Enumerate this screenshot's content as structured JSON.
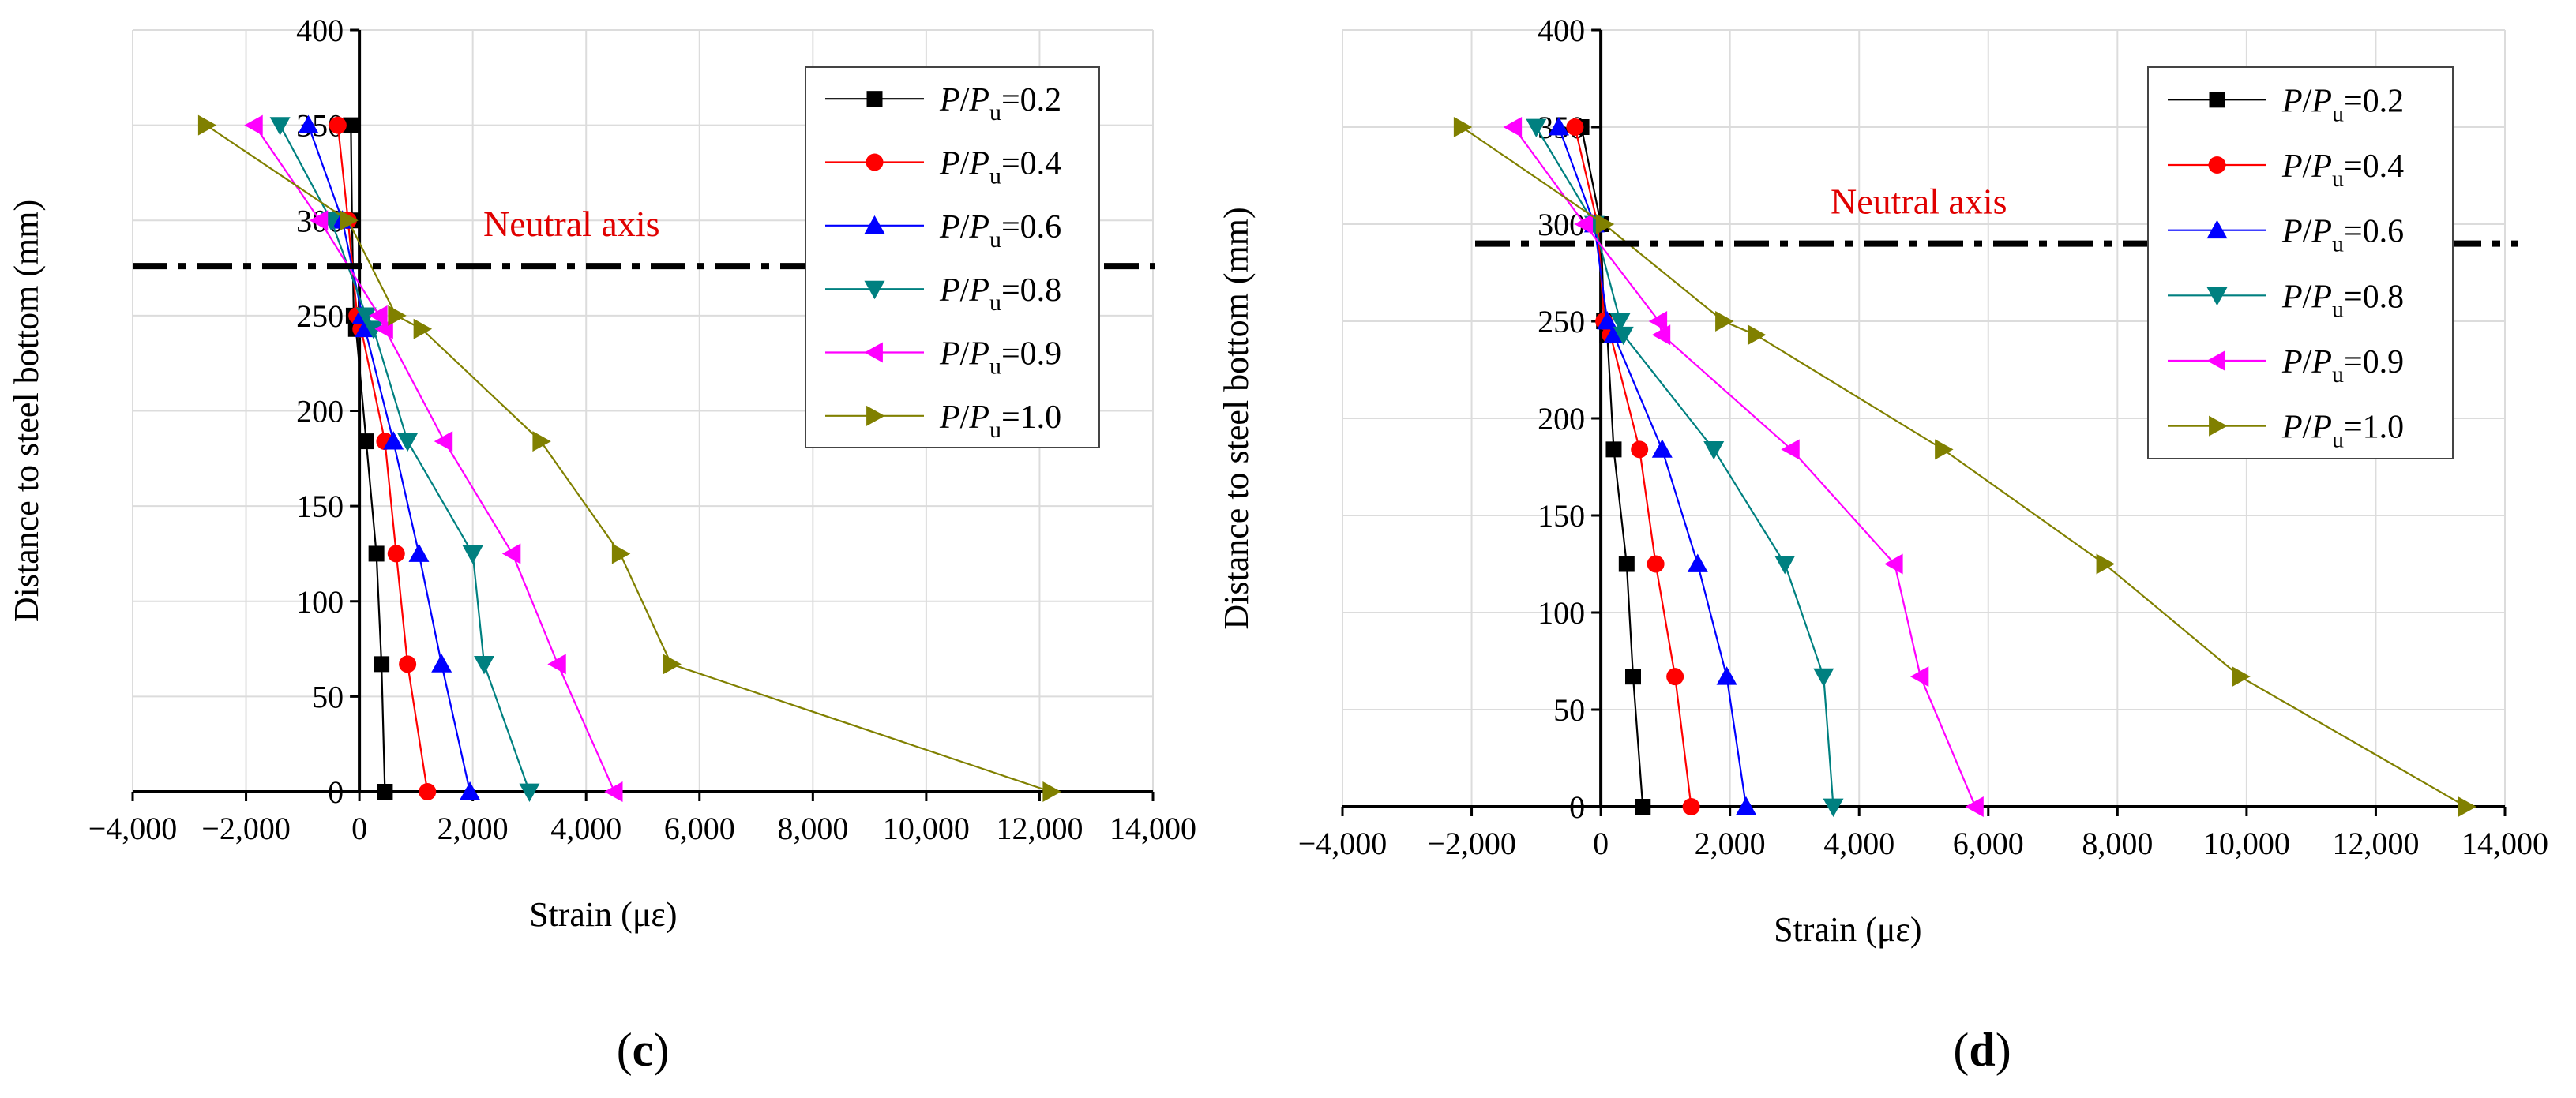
{
  "colors": {
    "black": "#000000",
    "red": "#ff0000",
    "blue": "#0000ff",
    "teal": "#008080",
    "magenta": "#ff00ff",
    "olive": "#808000",
    "neutral_label": "#e00000"
  },
  "legend_labels": [
    "P/Pu=0.2",
    "P/Pu=0.4",
    "P/Pu=0.6",
    "P/Pu=0.8",
    "P/Pu=0.9",
    "P/Pu=1.0"
  ],
  "chart_data": [
    {
      "type": "line",
      "panel_label": "c",
      "title": "",
      "xlabel": "Strain (με)",
      "ylabel": "Distance to steel bottom (mm)",
      "xlim": [
        -4000,
        14000
      ],
      "ylim": [
        0,
        400
      ],
      "xticks": [
        -4000,
        -2000,
        0,
        2000,
        4000,
        6000,
        8000,
        10000,
        12000,
        14000
      ],
      "xtick_labels": [
        "−4,000",
        "−2,000",
        "0",
        "2,000",
        "4,000",
        "6,000",
        "8,000",
        "10,000",
        "12,000",
        "14,000"
      ],
      "yticks": [
        0,
        50,
        100,
        150,
        200,
        250,
        300,
        350,
        400
      ],
      "ytick_labels": [
        "0",
        "50",
        "100",
        "150",
        "200",
        "250",
        "300",
        "350",
        "400"
      ],
      "grid": true,
      "legend_position": "top-right",
      "annotation": "Neutral axis",
      "neutral_axis_y": 276,
      "series": [
        {
          "name": "P/Pu=0.2",
          "marker": "square",
          "color": "#000000",
          "x": [
            450,
            390,
            300,
            120,
            -60,
            -100,
            -130,
            -150
          ],
          "y": [
            0,
            67,
            125,
            184,
            243,
            250,
            300,
            350
          ]
        },
        {
          "name": "P/Pu=0.4",
          "marker": "circle",
          "color": "#ff0000",
          "x": [
            1200,
            850,
            650,
            450,
            30,
            -40,
            -200,
            -380
          ],
          "y": [
            0,
            67,
            125,
            184,
            243,
            250,
            300,
            350
          ]
        },
        {
          "name": "P/Pu=0.6",
          "marker": "triangle-up",
          "color": "#0000ff",
          "x": [
            1950,
            1450,
            1050,
            600,
            100,
            50,
            -300,
            -900
          ],
          "y": [
            0,
            67,
            125,
            184,
            243,
            250,
            300,
            350
          ]
        },
        {
          "name": "P/Pu=0.8",
          "marker": "triangle-down",
          "color": "#008080",
          "x": [
            3000,
            2200,
            2000,
            850,
            250,
            120,
            -500,
            -1400
          ],
          "y": [
            0,
            67,
            125,
            184,
            243,
            250,
            300,
            350
          ]
        },
        {
          "name": "P/Pu=0.9",
          "marker": "triangle-left",
          "color": "#ff00ff",
          "x": [
            4500,
            3500,
            2700,
            1500,
            450,
            350,
            -700,
            -1850
          ],
          "y": [
            0,
            67,
            125,
            184,
            243,
            250,
            300,
            350
          ]
        },
        {
          "name": "P/Pu=1.0",
          "marker": "triangle-right",
          "color": "#808000",
          "x": [
            12200,
            5500,
            4600,
            3200,
            1100,
            650,
            -200,
            -2700
          ],
          "y": [
            0,
            67,
            125,
            184,
            243,
            250,
            300,
            350
          ]
        }
      ]
    },
    {
      "type": "line",
      "panel_label": "d",
      "title": "",
      "xlabel": "Strain (με)",
      "ylabel": "Distance to steel bottom (mm)",
      "xlim": [
        -4000,
        14000
      ],
      "ylim": [
        0,
        400
      ],
      "xticks": [
        -4000,
        -2000,
        0,
        2000,
        4000,
        6000,
        8000,
        10000,
        12000,
        14000
      ],
      "xtick_labels": [
        "−4,000",
        "−2,000",
        "0",
        "2,000",
        "4,000",
        "6,000",
        "8,000",
        "10,000",
        "12,000",
        "14,000"
      ],
      "yticks": [
        0,
        50,
        100,
        150,
        200,
        250,
        300,
        350,
        400
      ],
      "ytick_labels": [
        "0",
        "50",
        "100",
        "150",
        "200",
        "250",
        "300",
        "350",
        "400"
      ],
      "grid": true,
      "legend_position": "top-right",
      "annotation": "Neutral axis",
      "neutral_axis_y": 290,
      "series": [
        {
          "name": "P/Pu=0.2",
          "marker": "square",
          "color": "#000000",
          "x": [
            650,
            500,
            400,
            200,
            100,
            50,
            0,
            -300
          ],
          "y": [
            0,
            67,
            125,
            184,
            243,
            250,
            300,
            350
          ]
        },
        {
          "name": "P/Pu=0.4",
          "marker": "circle",
          "color": "#ff0000",
          "x": [
            1400,
            1150,
            850,
            600,
            150,
            50,
            -50,
            -400
          ],
          "y": [
            0,
            67,
            125,
            184,
            243,
            250,
            300,
            350
          ]
        },
        {
          "name": "P/Pu=0.6",
          "marker": "triangle-up",
          "color": "#0000ff",
          "x": [
            2250,
            1950,
            1500,
            950,
            200,
            100,
            -100,
            -650
          ],
          "y": [
            0,
            67,
            125,
            184,
            243,
            250,
            300,
            350
          ]
        },
        {
          "name": "P/Pu=0.8",
          "marker": "triangle-down",
          "color": "#008080",
          "x": [
            3600,
            3450,
            2850,
            1750,
            350,
            300,
            -100,
            -1000
          ],
          "y": [
            0,
            67,
            125,
            184,
            243,
            250,
            300,
            350
          ]
        },
        {
          "name": "P/Pu=0.9",
          "marker": "triangle-left",
          "color": "#ff00ff",
          "x": [
            5800,
            4950,
            4550,
            2950,
            950,
            900,
            -250,
            -1350
          ],
          "y": [
            0,
            67,
            125,
            184,
            243,
            250,
            300,
            350
          ]
        },
        {
          "name": "P/Pu=1.0",
          "marker": "triangle-right",
          "color": "#808000",
          "x": [
            13400,
            9900,
            7800,
            5300,
            2400,
            1900,
            50,
            -2150
          ],
          "y": [
            0,
            67,
            125,
            184,
            243,
            250,
            300,
            350
          ]
        }
      ]
    }
  ]
}
